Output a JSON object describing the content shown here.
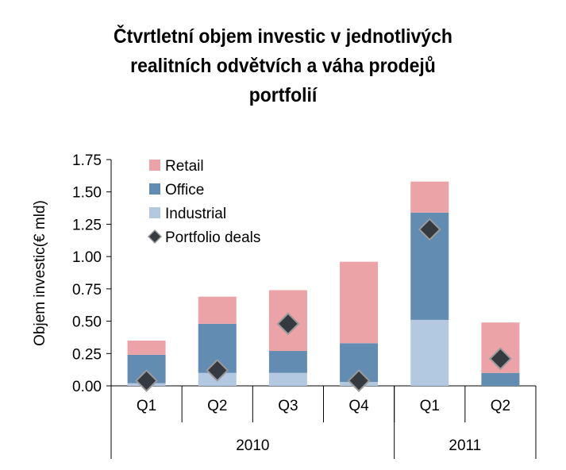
{
  "chart_data": {
    "type": "bar",
    "stacked": true,
    "title": "Čtvrtletní objem investic v jednotlivých\nrealitních odvětvích a váha prodejů\nportfolií",
    "xlabel": "",
    "ylabel": "Objem investic(€ mld)",
    "ylim": [
      0,
      1.75
    ],
    "yticks": [
      "0.00",
      "0.25",
      "0.50",
      "0.75",
      "1.00",
      "1.25",
      "1.50",
      "1.75"
    ],
    "ytick_values": [
      0,
      0.25,
      0.5,
      0.75,
      1.0,
      1.25,
      1.5,
      1.75
    ],
    "grid": false,
    "categories": [
      "Q1",
      "Q2",
      "Q3",
      "Q4",
      "Q1",
      "Q2"
    ],
    "category_groups": [
      {
        "label": "2010",
        "count": 4
      },
      {
        "label": "2011",
        "count": 2
      }
    ],
    "series": [
      {
        "name": "Industrial",
        "kind": "bar",
        "color": "#b3c9e1",
        "values": [
          0.02,
          0.1,
          0.1,
          0.03,
          0.51,
          0.0
        ]
      },
      {
        "name": "Office",
        "kind": "bar",
        "color": "#638cb3",
        "values": [
          0.22,
          0.38,
          0.17,
          0.3,
          0.83,
          0.1
        ]
      },
      {
        "name": "Retail",
        "kind": "bar",
        "color": "#eba3a8",
        "values": [
          0.11,
          0.21,
          0.47,
          0.63,
          0.24,
          0.39
        ]
      },
      {
        "name": "Portfolio deals",
        "kind": "marker",
        "marker": "diamond",
        "color": "#343a40",
        "edge_color": "#9a9a9a",
        "values": [
          0.04,
          0.12,
          0.48,
          0.04,
          1.21,
          0.21
        ]
      }
    ],
    "legend": {
      "position": "top-left",
      "order": [
        "Retail",
        "Office",
        "Industrial",
        "Portfolio deals"
      ]
    }
  }
}
